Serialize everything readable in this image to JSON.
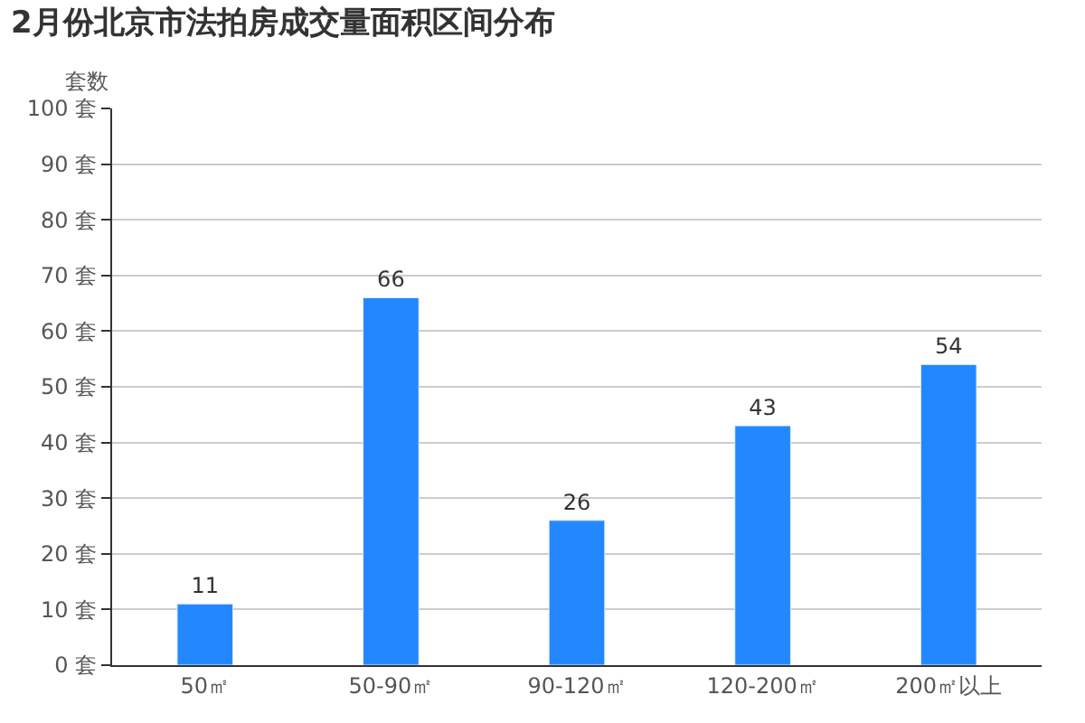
{
  "chart_data": {
    "type": "bar",
    "title": "2月份北京市法拍房成交量面积区间分布",
    "ylabel": "套数",
    "categories": [
      "50㎡",
      "50-90㎡",
      "90-120㎡",
      "120-200㎡",
      "200㎡以上"
    ],
    "values": [
      11,
      66,
      26,
      43,
      54
    ],
    "color": "#2388ff",
    "data_labels": true,
    "ylim": [
      0,
      100
    ],
    "yticks": [
      {
        "value": 0,
        "label": "0 套"
      },
      {
        "value": 10,
        "label": "10 套"
      },
      {
        "value": 20,
        "label": "20 套"
      },
      {
        "value": 30,
        "label": "30 套"
      },
      {
        "value": 40,
        "label": "40 套"
      },
      {
        "value": 50,
        "label": "50 套"
      },
      {
        "value": 60,
        "label": "60 套"
      },
      {
        "value": 70,
        "label": "70 套"
      },
      {
        "value": 80,
        "label": "80 套"
      },
      {
        "value": 90,
        "label": "90 套"
      },
      {
        "value": 100,
        "label": "100 套"
      }
    ],
    "grid": "y",
    "legend": false
  }
}
